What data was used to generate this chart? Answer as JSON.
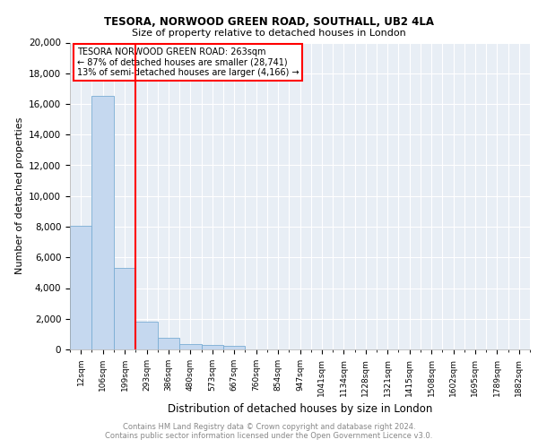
{
  "title1": "TESORA, NORWOOD GREEN ROAD, SOUTHALL, UB2 4LA",
  "title2": "Size of property relative to detached houses in London",
  "xlabel": "Distribution of detached houses by size in London",
  "ylabel": "Number of detached properties",
  "categories": [
    "12sqm",
    "106sqm",
    "199sqm",
    "293sqm",
    "386sqm",
    "480sqm",
    "573sqm",
    "667sqm",
    "760sqm",
    "854sqm",
    "947sqm",
    "1041sqm",
    "1134sqm",
    "1228sqm",
    "1321sqm",
    "1415sqm",
    "1508sqm",
    "1602sqm",
    "1695sqm",
    "1789sqm",
    "1882sqm"
  ],
  "values": [
    8050,
    16500,
    5300,
    1800,
    750,
    350,
    270,
    220,
    0,
    0,
    0,
    0,
    0,
    0,
    0,
    0,
    0,
    0,
    0,
    0,
    0
  ],
  "bar_color": "#c5d8ef",
  "bar_edge_color": "#7aadd4",
  "red_line_x": 2.5,
  "annotation_line1": "TESORA NORWOOD GREEN ROAD: 263sqm",
  "annotation_line2": "← 87% of detached houses are smaller (28,741)",
  "annotation_line3": "13% of semi-detached houses are larger (4,166) →",
  "ylim": [
    0,
    20000
  ],
  "yticks": [
    0,
    2000,
    4000,
    6000,
    8000,
    10000,
    12000,
    14000,
    16000,
    18000,
    20000
  ],
  "bg_color": "#e8eef5",
  "grid_color": "#ffffff",
  "footnote1": "Contains HM Land Registry data © Crown copyright and database right 2024.",
  "footnote2": "Contains public sector information licensed under the Open Government Licence v3.0."
}
